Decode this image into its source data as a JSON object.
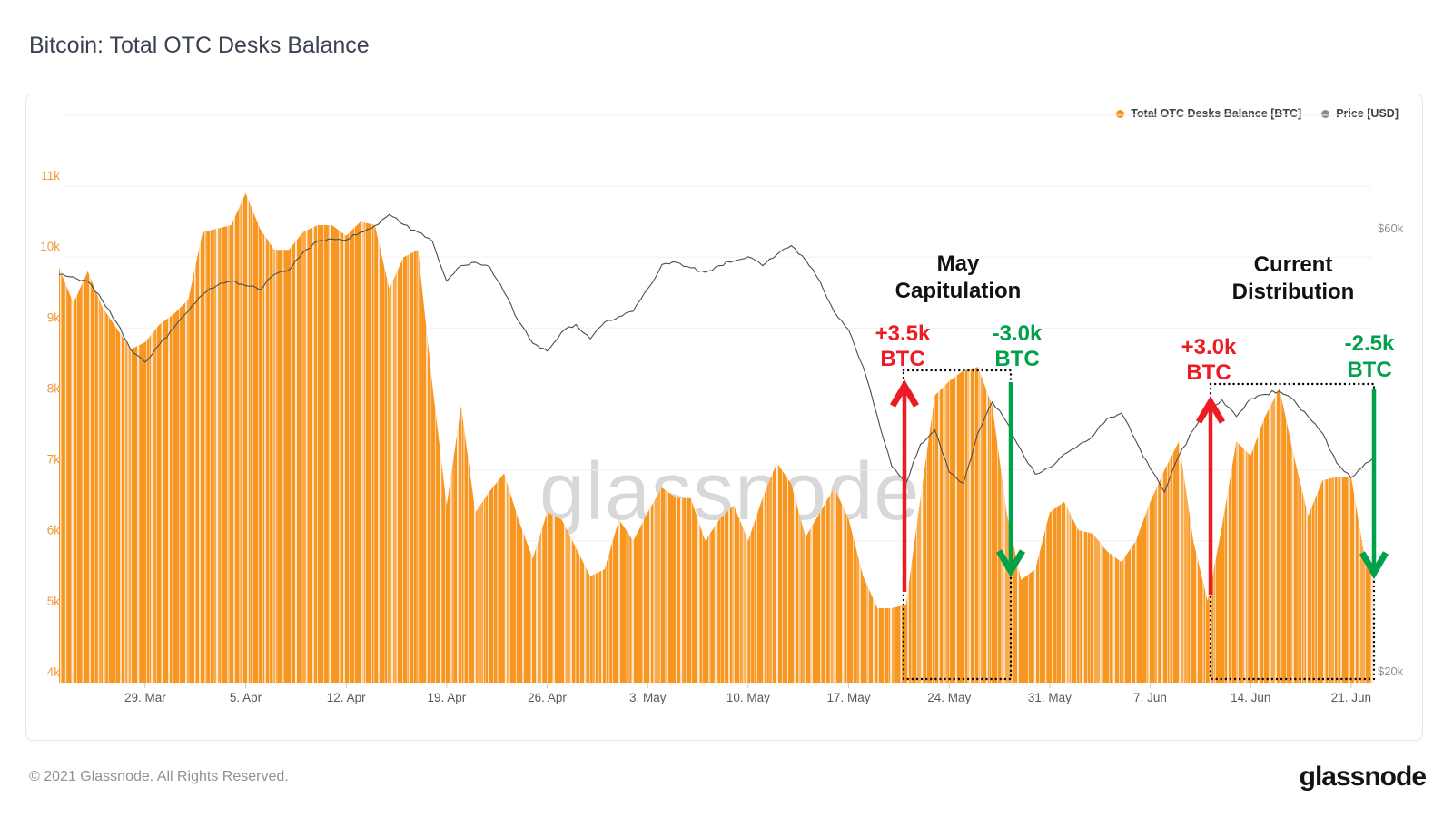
{
  "page": {
    "title": "Bitcoin: Total OTC Desks Balance",
    "watermark": "glassnode",
    "footer_copyright": "© 2021 Glassnode. All Rights Reserved.",
    "footer_logo": "glassnode"
  },
  "legend": {
    "items": [
      {
        "label": "Total OTC Desks Balance [BTC]",
        "color": "#F7931A"
      },
      {
        "label": "Price [USD]",
        "color": "#8C8C8C"
      }
    ]
  },
  "chart_data": {
    "type": "area+line",
    "title": "Bitcoin: Total OTC Desks Balance",
    "x_unit": "days since 23 Mar 2021",
    "x_tick_days": [
      6,
      13,
      20,
      27,
      34,
      41,
      48,
      55,
      62,
      69,
      76,
      83,
      90
    ],
    "x_tick_labels": [
      "29. Mar",
      "5. Apr",
      "12. Apr",
      "19. Apr",
      "26. Apr",
      "3. May",
      "10. May",
      "17. May",
      "24. May",
      "31. May",
      "7. Jun",
      "14. Jun",
      "21. Jun"
    ],
    "y_left": {
      "unit": "BTC",
      "min": 4000,
      "max": 11000,
      "tick_values": [
        4,
        5,
        6,
        7,
        8,
        9,
        10,
        11
      ],
      "tick_labels": [
        "4k",
        "5k",
        "6k",
        "7k",
        "8k",
        "9k",
        "10k",
        "11k"
      ],
      "color": "#F09A3E"
    },
    "y_right": {
      "unit": "USD",
      "tick_labels": [
        "$60k",
        "$20k"
      ],
      "tick_values": [
        60000,
        20000
      ],
      "color": "#8E8E8E"
    },
    "grid": true,
    "legend_position": "top-right",
    "series": [
      {
        "name": "Total OTC Desks Balance [BTC]",
        "type": "area",
        "color": "#F7931A",
        "unit": "thousand BTC",
        "daily_values": [
          9.85,
          9.35,
          9.8,
          9.3,
          9.0,
          8.7,
          8.8,
          9.05,
          9.2,
          9.4,
          10.35,
          10.4,
          10.45,
          10.9,
          10.4,
          10.1,
          10.1,
          10.35,
          10.45,
          10.45,
          10.3,
          10.5,
          10.45,
          9.55,
          10.0,
          10.1,
          8.2,
          6.5,
          7.9,
          6.4,
          6.7,
          6.95,
          6.3,
          5.75,
          6.4,
          6.3,
          5.9,
          5.5,
          5.6,
          6.3,
          6.0,
          6.4,
          6.75,
          6.6,
          6.6,
          6.0,
          6.3,
          6.5,
          6.0,
          6.6,
          7.1,
          6.8,
          6.05,
          6.4,
          6.75,
          6.3,
          5.5,
          5.05,
          5.05,
          5.1,
          6.6,
          8.05,
          8.25,
          8.4,
          8.45,
          7.9,
          6.4,
          5.45,
          5.6,
          6.4,
          6.55,
          6.15,
          6.1,
          5.85,
          5.7,
          6.0,
          6.55,
          7.0,
          7.4,
          6.0,
          5.15,
          6.2,
          7.4,
          7.2,
          7.75,
          8.15,
          7.2,
          6.35,
          6.85,
          6.9,
          6.9,
          5.7,
          5.4
        ]
      },
      {
        "name": "Price [USD]",
        "type": "line",
        "color": "#4D4D4D",
        "unit": "thousand USD",
        "daily_values": [
          55.8,
          55.6,
          55.2,
          53.5,
          51.5,
          49.0,
          47.9,
          49.5,
          51.0,
          52.5,
          54.0,
          54.8,
          55.2,
          54.8,
          54.4,
          55.8,
          56.2,
          57.8,
          58.8,
          59.0,
          58.9,
          59.6,
          60.2,
          61.2,
          60.3,
          59.6,
          58.8,
          55.2,
          56.6,
          56.9,
          56.5,
          54.2,
          51.6,
          49.6,
          48.9,
          50.6,
          51.3,
          50.0,
          51.5,
          52.0,
          52.5,
          54.5,
          56.7,
          56.9,
          56.4,
          56.0,
          56.6,
          57.0,
          57.4,
          56.6,
          57.6,
          58.4,
          57.1,
          55.2,
          52.4,
          50.8,
          47.5,
          43.0,
          38.5,
          37.0,
          40.5,
          41.8,
          38.0,
          37.0,
          41.5,
          44.3,
          42.5,
          40.0,
          37.8,
          38.4,
          39.6,
          40.4,
          41.2,
          42.8,
          43.3,
          40.8,
          38.3,
          36.2,
          39.5,
          41.8,
          43.5,
          44.5,
          43.0,
          44.6,
          45.0,
          45.3,
          44.5,
          43.0,
          41.5,
          38.8,
          37.5,
          38.8,
          39.5
        ]
      }
    ],
    "annotations": {
      "colors": {
        "gain": "#ED1C24",
        "loss": "#00A14B",
        "title": "#111111"
      },
      "may_capitulation": {
        "title_line1": "May",
        "title_line2": "Capitulation",
        "gain_line1": "+3.5k",
        "gain_line2": "BTC",
        "loss_line1": "-3.0k",
        "loss_line2": "BTC"
      },
      "current_distribution": {
        "title_line1": "Current",
        "title_line2": "Distribution",
        "gain_line1": "+3.0k",
        "gain_line2": "BTC",
        "loss_line1": "-2.5k",
        "loss_line2": "BTC"
      }
    }
  }
}
